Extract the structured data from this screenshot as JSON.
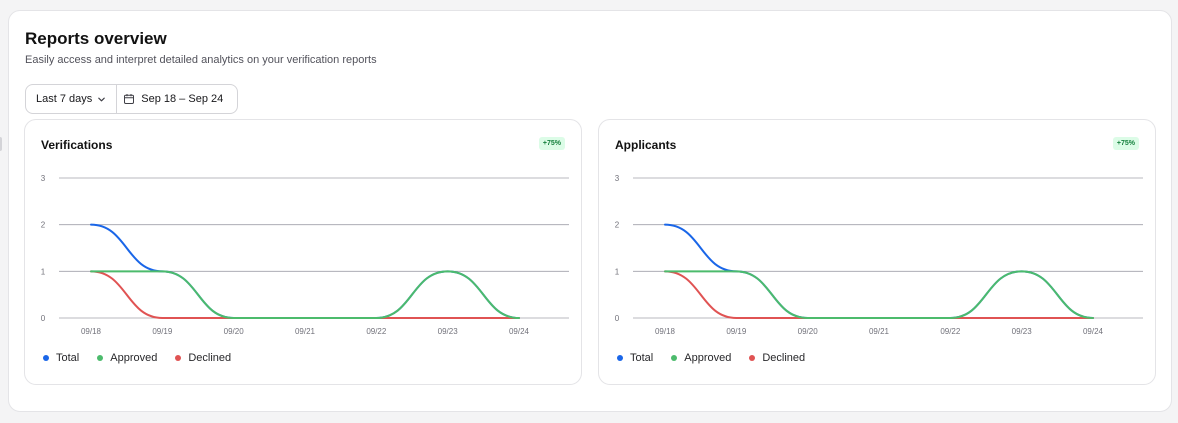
{
  "header": {
    "title": "Reports overview",
    "subtitle": "Easily access and interpret detailed analytics on your verification reports"
  },
  "filters": {
    "range_label": "Last 7 days",
    "date_label": "Sep 18 – Sep 24"
  },
  "colors": {
    "total": "#1a66e8",
    "approved": "#4cbb6c",
    "declined": "#e05353"
  },
  "legend": {
    "total": "Total",
    "approved": "Approved",
    "declined": "Declined"
  },
  "cards": [
    {
      "title": "Verifications",
      "badge": "+75%"
    },
    {
      "title": "Applicants",
      "badge": "+75%"
    }
  ],
  "chart_data": [
    {
      "type": "line",
      "x": [
        "09/18",
        "09/19",
        "09/20",
        "09/21",
        "09/22",
        "09/23",
        "09/24"
      ],
      "ylim": [
        0,
        3
      ],
      "yticks": [
        0,
        1,
        2,
        3
      ],
      "grid": true,
      "legend_position": "bottom-left",
      "series": [
        {
          "name": "Total",
          "values": [
            2,
            1,
            0,
            0,
            0,
            1,
            0
          ]
        },
        {
          "name": "Approved",
          "values": [
            1,
            1,
            0,
            0,
            0,
            1,
            0
          ]
        },
        {
          "name": "Declined",
          "values": [
            1,
            0,
            0,
            0,
            0,
            0,
            0
          ]
        }
      ]
    },
    {
      "type": "line",
      "x": [
        "09/18",
        "09/19",
        "09/20",
        "09/21",
        "09/22",
        "09/23",
        "09/24"
      ],
      "ylim": [
        0,
        3
      ],
      "yticks": [
        0,
        1,
        2,
        3
      ],
      "grid": true,
      "legend_position": "bottom-left",
      "series": [
        {
          "name": "Total",
          "values": [
            2,
            1,
            0,
            0,
            0,
            1,
            0
          ]
        },
        {
          "name": "Approved",
          "values": [
            1,
            1,
            0,
            0,
            0,
            1,
            0
          ]
        },
        {
          "name": "Declined",
          "values": [
            1,
            0,
            0,
            0,
            0,
            0,
            0
          ]
        }
      ]
    }
  ]
}
